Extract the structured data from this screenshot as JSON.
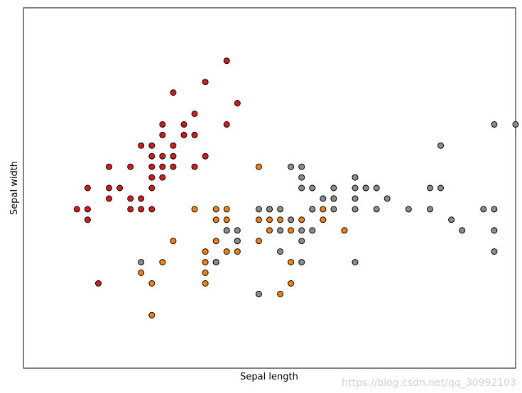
{
  "chart_data": {
    "type": "scatter",
    "xlabel": "Sepal length",
    "ylabel": "Sepal width",
    "xlim": [
      3.8,
      8.4
    ],
    "ylim": [
      1.5,
      4.9
    ],
    "ticks": "none",
    "grid": false,
    "marker_edge_color": "#000000",
    "series": [
      {
        "color": "#d7191c",
        "points": [
          [
            4.3,
            3.0
          ],
          [
            4.4,
            3.0
          ],
          [
            4.4,
            2.9
          ],
          [
            4.4,
            3.2
          ],
          [
            4.5,
            2.3
          ],
          [
            4.6,
            3.1
          ],
          [
            4.6,
            3.2
          ],
          [
            4.6,
            3.4
          ],
          [
            4.7,
            3.2
          ],
          [
            4.8,
            3.0
          ],
          [
            4.8,
            3.1
          ],
          [
            4.8,
            3.4
          ],
          [
            4.9,
            3.0
          ],
          [
            4.9,
            3.1
          ],
          [
            4.9,
            3.6
          ],
          [
            5.0,
            3.0
          ],
          [
            5.0,
            3.2
          ],
          [
            5.0,
            3.3
          ],
          [
            5.0,
            3.4
          ],
          [
            5.0,
            3.5
          ],
          [
            5.0,
            3.6
          ],
          [
            5.1,
            3.3
          ],
          [
            5.1,
            3.4
          ],
          [
            5.1,
            3.5
          ],
          [
            5.1,
            3.7
          ],
          [
            5.1,
            3.8
          ],
          [
            5.2,
            3.4
          ],
          [
            5.2,
            3.5
          ],
          [
            5.2,
            3.6
          ],
          [
            5.2,
            4.1
          ],
          [
            5.3,
            3.7
          ],
          [
            5.3,
            3.8
          ],
          [
            5.4,
            3.4
          ],
          [
            5.4,
            3.7
          ],
          [
            5.4,
            3.9
          ],
          [
            5.5,
            3.5
          ],
          [
            5.5,
            4.2
          ],
          [
            5.7,
            3.8
          ],
          [
            5.7,
            4.4
          ],
          [
            5.8,
            4.0
          ]
        ]
      },
      {
        "color": "#f28109",
        "points": [
          [
            4.9,
            2.4
          ],
          [
            5.0,
            2.0
          ],
          [
            5.0,
            2.3
          ],
          [
            5.1,
            2.5
          ],
          [
            5.2,
            2.7
          ],
          [
            5.4,
            3.0
          ],
          [
            5.5,
            2.3
          ],
          [
            5.5,
            2.4
          ],
          [
            5.5,
            2.5
          ],
          [
            5.5,
            2.6
          ],
          [
            5.6,
            2.5
          ],
          [
            5.6,
            2.7
          ],
          [
            5.6,
            2.9
          ],
          [
            5.6,
            3.0
          ],
          [
            5.7,
            2.6
          ],
          [
            5.7,
            2.8
          ],
          [
            5.7,
            2.9
          ],
          [
            5.7,
            3.0
          ],
          [
            5.8,
            2.6
          ],
          [
            5.8,
            2.7
          ],
          [
            6.0,
            2.2
          ],
          [
            6.0,
            2.7
          ],
          [
            6.0,
            2.9
          ],
          [
            6.0,
            3.4
          ],
          [
            6.1,
            2.8
          ],
          [
            6.1,
            2.9
          ],
          [
            6.2,
            2.2
          ],
          [
            6.2,
            2.9
          ],
          [
            6.3,
            2.3
          ],
          [
            6.3,
            2.5
          ],
          [
            6.3,
            2.8
          ],
          [
            6.4,
            2.9
          ],
          [
            6.5,
            3.0
          ],
          [
            6.6,
            2.9
          ],
          [
            6.6,
            3.0
          ],
          [
            6.7,
            3.1
          ],
          [
            6.8,
            2.8
          ],
          [
            7.0,
            3.2
          ]
        ]
      },
      {
        "color": "#8c8c8c",
        "points": [
          [
            4.9,
            2.5
          ],
          [
            5.6,
            2.5
          ],
          [
            5.7,
            2.8
          ],
          [
            5.8,
            2.7
          ],
          [
            5.8,
            2.8
          ],
          [
            6.0,
            3.0
          ],
          [
            6.0,
            2.2
          ],
          [
            6.1,
            3.0
          ],
          [
            6.1,
            3.0
          ],
          [
            6.2,
            2.8
          ],
          [
            6.2,
            3.0
          ],
          [
            6.2,
            2.6
          ],
          [
            6.3,
            3.4
          ],
          [
            6.3,
            2.9
          ],
          [
            6.4,
            3.4
          ],
          [
            6.4,
            3.3
          ],
          [
            6.4,
            3.2
          ],
          [
            6.4,
            2.8
          ],
          [
            6.4,
            2.5
          ],
          [
            6.4,
            2.7
          ],
          [
            6.5,
            3.2
          ],
          [
            6.5,
            3.0
          ],
          [
            6.5,
            2.8
          ],
          [
            6.6,
            3.1
          ],
          [
            6.7,
            3.2
          ],
          [
            6.7,
            3.0
          ],
          [
            6.7,
            3.1
          ],
          [
            6.9,
            3.3
          ],
          [
            6.9,
            3.1
          ],
          [
            6.9,
            3.2
          ],
          [
            6.9,
            3.0
          ],
          [
            6.9,
            2.5
          ],
          [
            7.0,
            3.2
          ],
          [
            7.1,
            3.2
          ],
          [
            7.1,
            3.0
          ],
          [
            7.2,
            3.1
          ],
          [
            7.4,
            3.0
          ],
          [
            7.6,
            3.0
          ],
          [
            7.6,
            3.2
          ],
          [
            7.7,
            3.6
          ],
          [
            7.7,
            3.2
          ],
          [
            7.8,
            2.9
          ],
          [
            7.9,
            2.8
          ],
          [
            8.1,
            3.0
          ],
          [
            8.2,
            3.0
          ],
          [
            8.2,
            3.8
          ],
          [
            8.2,
            2.8
          ],
          [
            8.2,
            2.6
          ],
          [
            8.4,
            3.8
          ]
        ]
      }
    ]
  },
  "watermark": "https://blog.csdn.net/qq_30992103"
}
